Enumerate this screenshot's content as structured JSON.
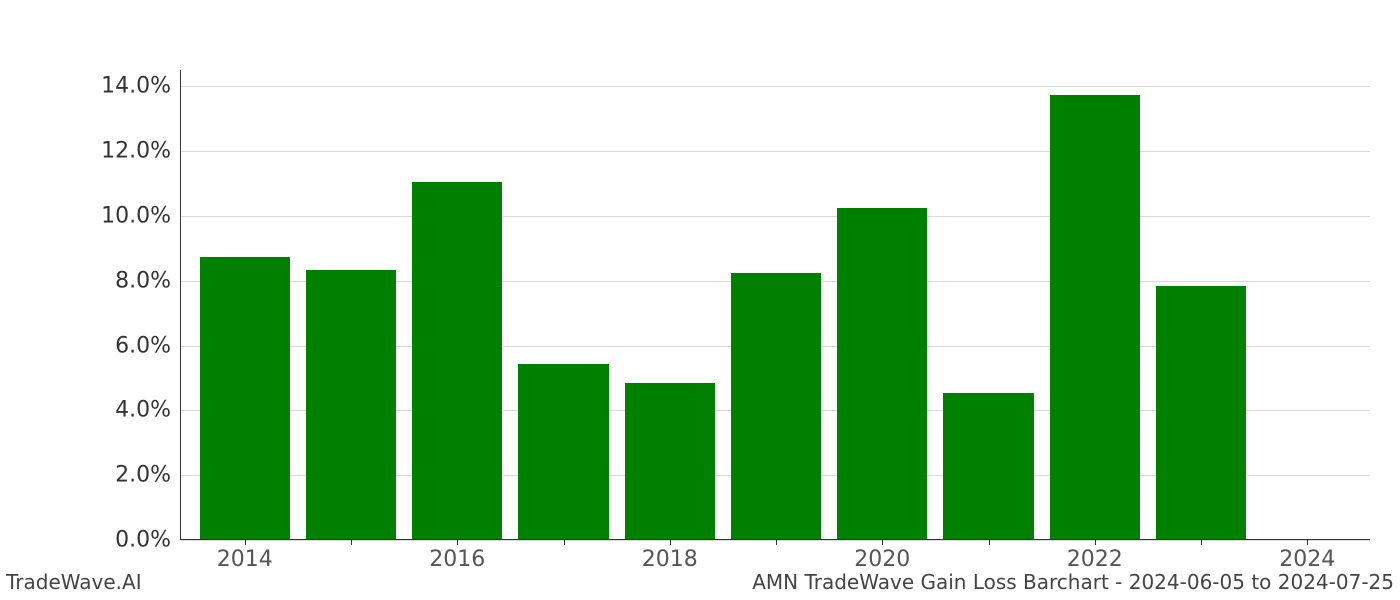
{
  "chart": {
    "type": "bar",
    "background_color": "#ffffff",
    "grid_color": "#d9d9d9",
    "axis_color": "#333333",
    "bar_color": "#008000",
    "ylim": [
      0,
      14.5
    ],
    "yticks": [
      0,
      2,
      4,
      6,
      8,
      10,
      12,
      14
    ],
    "ytick_labels": [
      "0.0%",
      "2.0%",
      "4.0%",
      "6.0%",
      "8.0%",
      "10.0%",
      "12.0%",
      "14.0%"
    ],
    "ytick_fontsize": 22,
    "ytick_color": "#333333",
    "x_years_start": 2014,
    "x_years_end": 2024,
    "x_major_labels": [
      "2014",
      "2016",
      "2018",
      "2020",
      "2022",
      "2024"
    ],
    "x_major_positions": [
      2014,
      2016,
      2018,
      2020,
      2022,
      2024
    ],
    "xtick_fontsize": 22,
    "xtick_color": "#555555",
    "bar_width_years": 0.85,
    "bars": [
      {
        "year": 2014,
        "value": 8.7
      },
      {
        "year": 2015,
        "value": 8.3
      },
      {
        "year": 2016,
        "value": 11.0
      },
      {
        "year": 2017,
        "value": 5.4
      },
      {
        "year": 2018,
        "value": 4.8
      },
      {
        "year": 2019,
        "value": 8.2
      },
      {
        "year": 2020,
        "value": 10.2
      },
      {
        "year": 2021,
        "value": 4.5
      },
      {
        "year": 2022,
        "value": 13.7
      },
      {
        "year": 2023,
        "value": 7.8
      },
      {
        "year": 2024,
        "value": 0.0
      }
    ]
  },
  "footer": {
    "left": "TradeWave.AI",
    "right": "AMN TradeWave Gain Loss Barchart - 2024-06-05 to 2024-07-25",
    "fontsize": 20,
    "color": "#444444"
  }
}
